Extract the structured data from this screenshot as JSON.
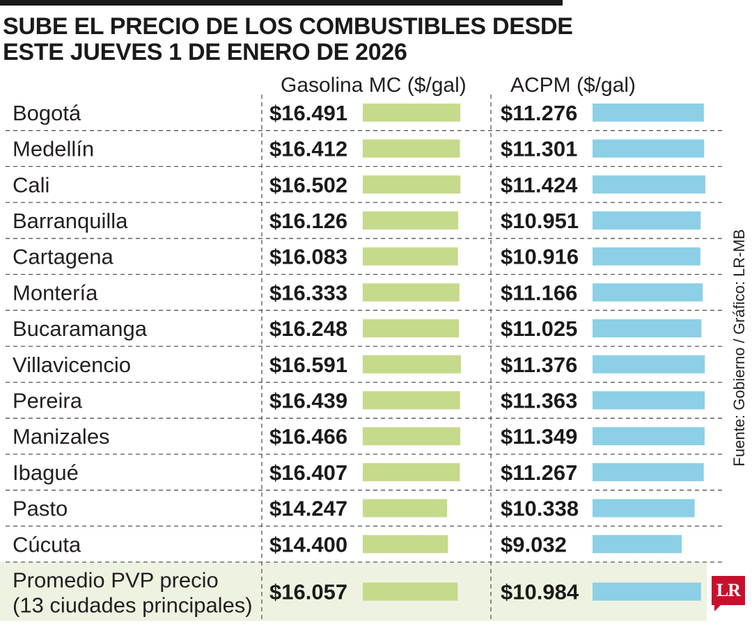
{
  "title_lines": [
    "SUBE EL PRECIO DE LOS COMBUSTIBLES DESDE",
    "ESTE JUEVES 1 DE ENERO DE 2026"
  ],
  "source": "Fuente: Gobierno / Gráfico: LR-MB",
  "logo": "LR",
  "colors": {
    "gasolina": "#c5da8a",
    "acpm": "#8ccfe6",
    "highlight_row": "#eef3e1",
    "grid": "#555555"
  },
  "chart_data": {
    "type": "bar",
    "title": "SUBE EL PRECIO DE LOS COMBUSTIBLES DESDE ESTE JUEVES 1 DE ENERO DE 2026",
    "orientation": "horizontal",
    "categories": [
      "Bogotá",
      "Medellín",
      "Cali",
      "Barranquilla",
      "Cartagena",
      "Montería",
      "Bucaramanga",
      "Villavicencio",
      "Pereira",
      "Manizales",
      "Ibagué",
      "Pasto",
      "Cúcuta"
    ],
    "series": [
      {
        "name": "Gasolina MC ($/gal)",
        "values": [
          16491,
          16412,
          16502,
          16126,
          16083,
          16333,
          16248,
          16591,
          16439,
          16466,
          16407,
          14247,
          14400
        ],
        "labels": [
          "$16.491",
          "$16.412",
          "$16.502",
          "$16.126",
          "$16.083",
          "$16.333",
          "$16.248",
          "$16.591",
          "$16.439",
          "$16.466",
          "$16.407",
          "$14.247",
          "$14.400"
        ]
      },
      {
        "name": "ACPM ($/gal)",
        "values": [
          11276,
          11301,
          11424,
          10951,
          10916,
          11166,
          11025,
          11376,
          11363,
          11349,
          11267,
          10338,
          9032
        ],
        "labels": [
          "$11.276",
          "$11.301",
          "$11.424",
          "$10.951",
          "$10.916",
          "$11.166",
          "$11.025",
          "$11.376",
          "$11.363",
          "$11.349",
          "$11.267",
          "$10.338",
          "$9.032"
        ]
      }
    ],
    "summary_row": {
      "label_lines": [
        "Promedio PVP precio",
        "(13 ciudades principales)"
      ],
      "values": [
        16057,
        10984
      ],
      "labels": [
        "$16.057",
        "$10.984"
      ]
    }
  }
}
